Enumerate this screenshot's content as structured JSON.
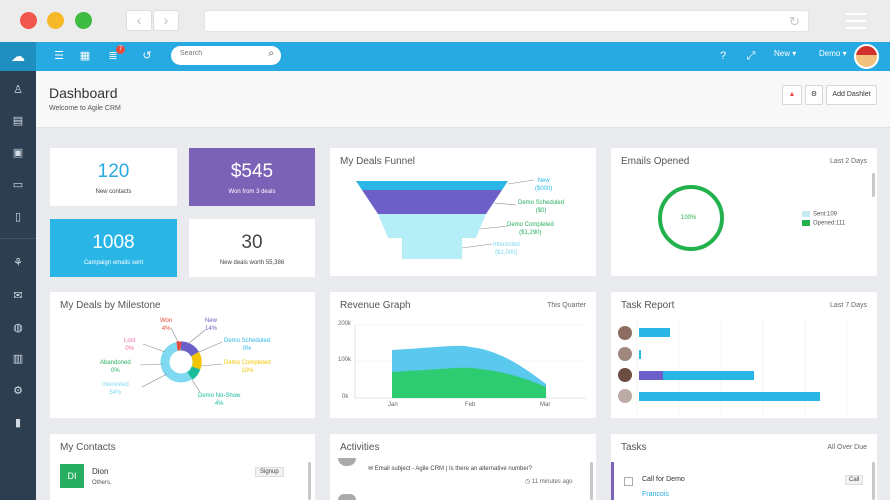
{
  "header": {
    "title": "Dashboard",
    "subtitle": "Welcome to Agile CRM",
    "add_dashlet": "Add Dashlet"
  },
  "topbar": {
    "notifications_count": "7",
    "search_placeholder": "Search",
    "new_label": "New",
    "user_label": "Demo"
  },
  "stats": [
    {
      "value": "120",
      "label": "New contacts",
      "color": "#26aae1",
      "bg": "#ffffff"
    },
    {
      "value": "$545",
      "label": "Won from 3 deals",
      "color": "#ffffff",
      "bg": "#7c62b6"
    },
    {
      "value": "1008",
      "label": "Campaign emails sent",
      "color": "#ffffff",
      "bg": "#29b6e6"
    },
    {
      "value": "30",
      "label": "New deals worth 55,386",
      "color": "#444444",
      "bg": "#ffffff"
    }
  ],
  "funnel": {
    "title": "My Deals Funnel",
    "labels": [
      {
        "name": "New",
        "value": "($000)",
        "color": "#29b6e6"
      },
      {
        "name": "Demo Scheduled",
        "value": "($0)",
        "color": "#27ae60"
      },
      {
        "name": "Demo Completed",
        "value": "($1,290)",
        "color": "#27ae60"
      },
      {
        "name": "Interested",
        "value": "($1,000)",
        "color": "#7fd9f0"
      }
    ]
  },
  "emails_opened": {
    "title": "Emails Opened",
    "range": "Last 2 Days",
    "percent": "100%",
    "sent_label": "Sent:109",
    "opened_label": "Opened:111",
    "colors": {
      "sent": "#c9e9f2",
      "opened": "#22b14c"
    }
  },
  "milestone": {
    "title": "My Deals by Milestone",
    "slices": [
      {
        "name": "Won",
        "pct": "4%",
        "color": "#e74c3c"
      },
      {
        "name": "New",
        "pct": "14%",
        "color": "#6c5fc7"
      },
      {
        "name": "Lost",
        "pct": "0%",
        "color": "#f06fa8"
      },
      {
        "name": "Demo Scheduled",
        "pct": "0%",
        "color": "#29b6e6"
      },
      {
        "name": "Abandoned",
        "pct": "0%",
        "color": "#27ae60"
      },
      {
        "name": "Demo Completed",
        "pct": "10%",
        "color": "#f2c500"
      },
      {
        "name": "Interested",
        "pct": "54%",
        "color": "#7fd9f0"
      },
      {
        "name": "Demo No-Show",
        "pct": "4%",
        "color": "#1abc9c"
      }
    ]
  },
  "revenue": {
    "title": "Revenue Graph",
    "range": "This Quarter",
    "yticks": [
      "200k",
      "100k",
      "0k"
    ],
    "xticks": [
      "Jan",
      "Feb",
      "Mar"
    ]
  },
  "tasks_report": {
    "title": "Task Report",
    "range": "Last 7 Days"
  },
  "contacts": {
    "title": "My Contacts",
    "items": [
      {
        "initials": "DI",
        "name": "Dion",
        "sub": "Others,",
        "tag": "Signup"
      }
    ]
  },
  "activities": {
    "title": "Activities",
    "items": [
      {
        "text": "Email subject - Agile CRM | Is there an alternative number?",
        "time": "11 minutes ago"
      }
    ]
  },
  "tasks": {
    "title": "Tasks",
    "range": "All Over Due",
    "items": [
      {
        "name": "Call for Demo",
        "owner": "Francois",
        "badge": "Call"
      }
    ]
  }
}
